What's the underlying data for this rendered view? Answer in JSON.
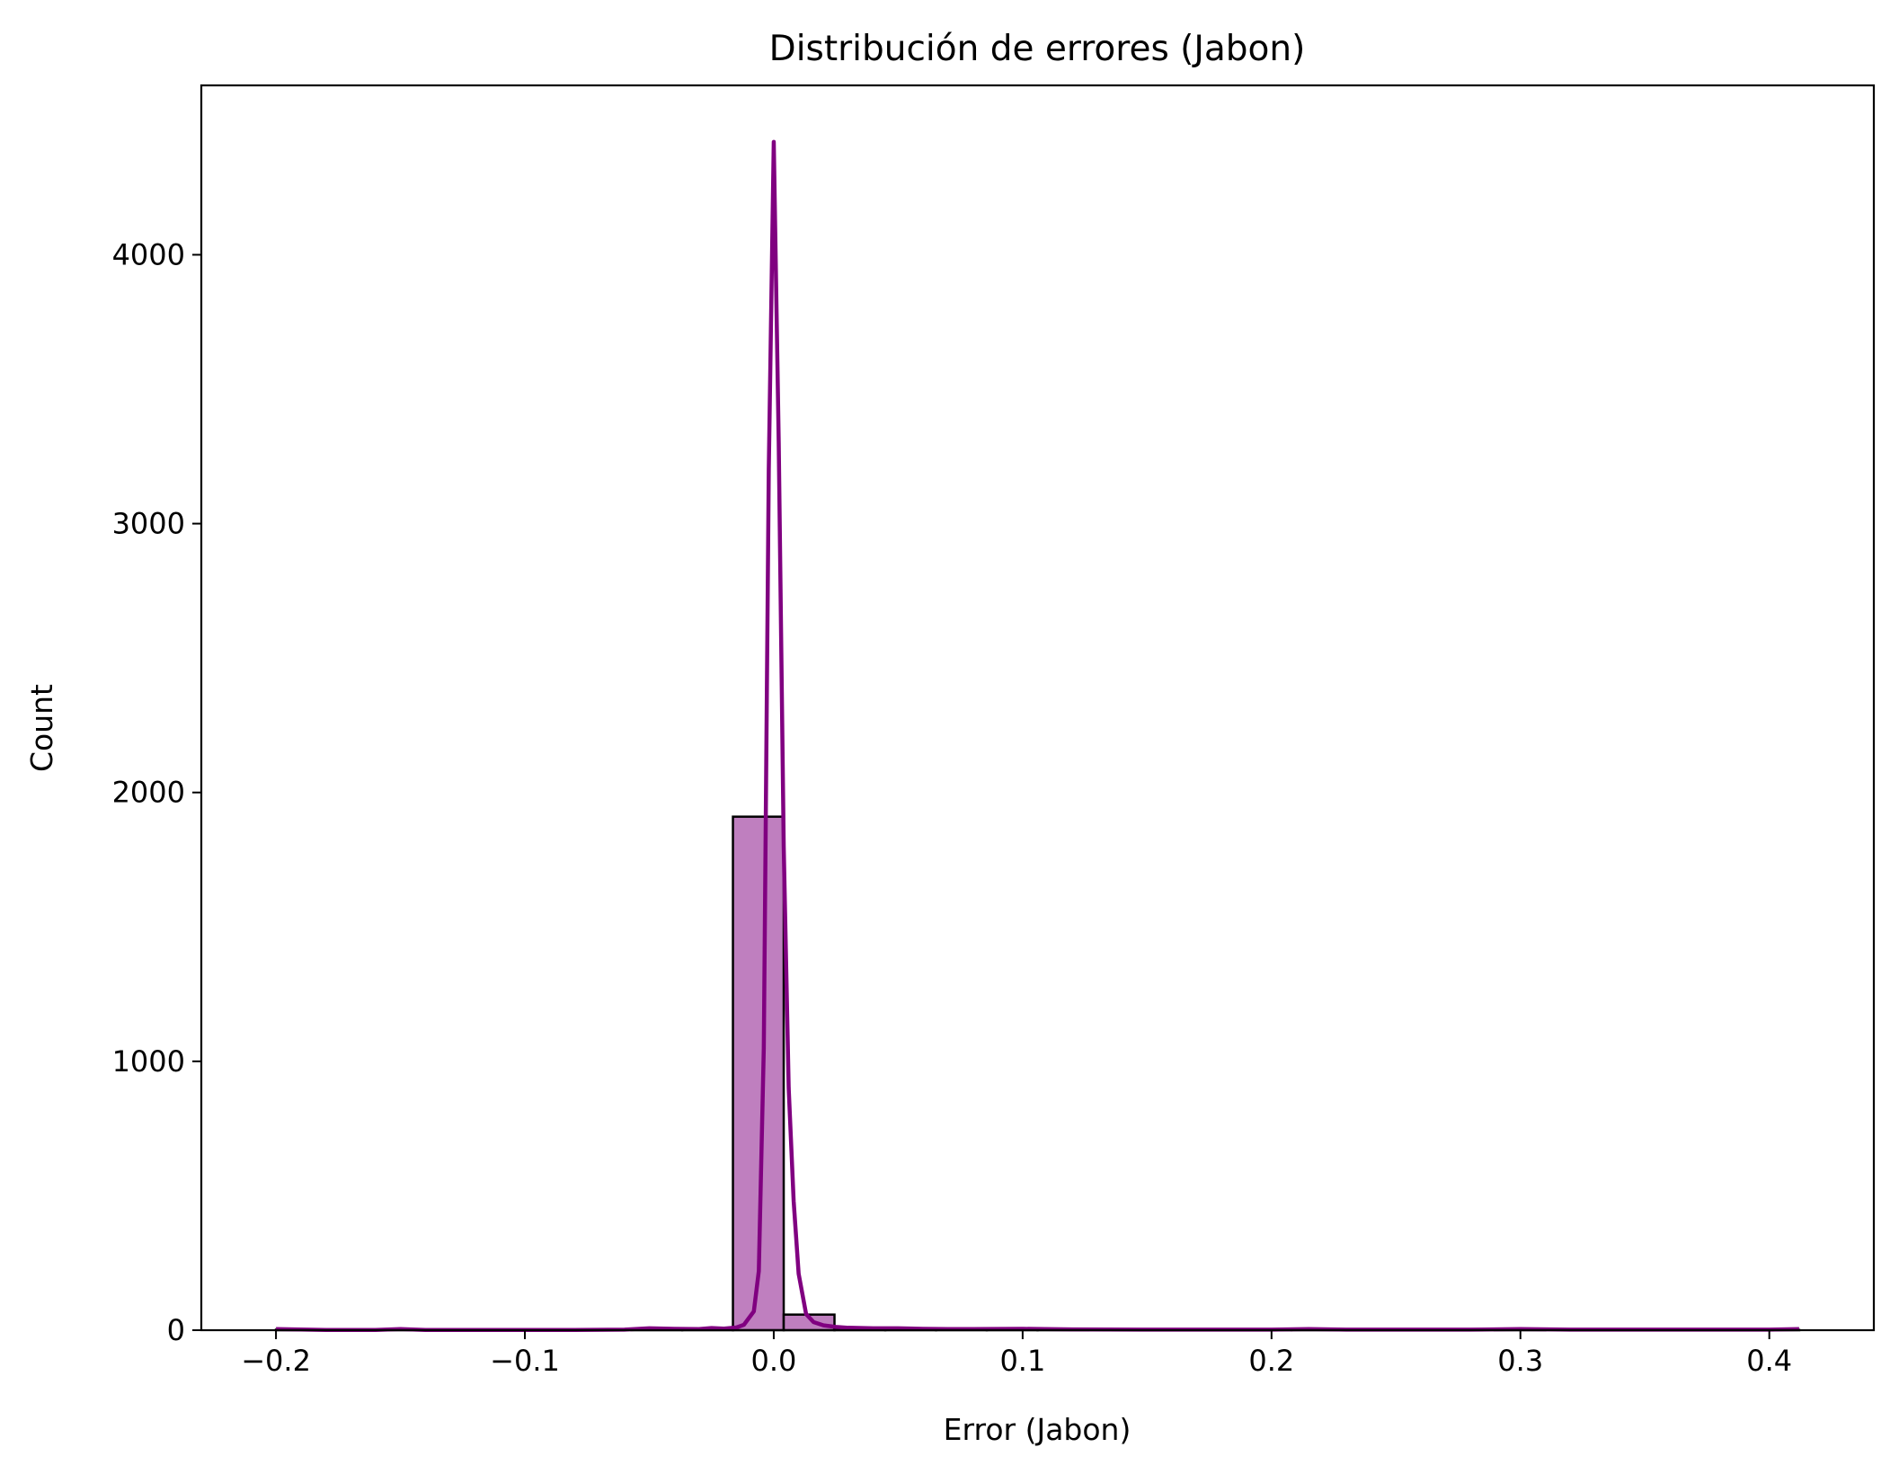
{
  "chart_data": {
    "type": "bar",
    "title": "Distribución de errores (Jabon)",
    "xlabel": "Error (Jabon)",
    "ylabel": "Count",
    "xlim": [
      -0.23,
      0.442
    ],
    "ylim": [
      0,
      4630
    ],
    "x_ticks": [
      -0.2,
      -0.1,
      0.0,
      0.1,
      0.2,
      0.3,
      0.4
    ],
    "x_tick_labels": [
      "−0.2",
      "−0.1",
      "0.0",
      "0.1",
      "0.2",
      "0.3",
      "0.4"
    ],
    "y_ticks": [
      0,
      1000,
      2000,
      3000,
      4000
    ],
    "y_tick_labels": [
      "0",
      "1000",
      "2000",
      "3000",
      "4000"
    ],
    "grid": false,
    "legend": "none",
    "colors": {
      "bar_fill": "#bf7fbf",
      "bar_edge": "#000000",
      "kde_line": "#800080"
    },
    "histogram": {
      "bin_edges": [
        -0.2,
        -0.1796,
        -0.1592,
        -0.1388,
        -0.1184,
        -0.098,
        -0.0776,
        -0.0572,
        -0.0368,
        -0.0164,
        0.004,
        0.0244,
        0.0448,
        0.0652,
        0.0856,
        0.106,
        0.1264,
        0.1468,
        0.1672,
        0.1876,
        0.208,
        0.2284,
        0.2488,
        0.2692,
        0.2896,
        0.31,
        0.3304,
        0.3508,
        0.3712,
        0.3916,
        0.412
      ],
      "counts": [
        2,
        0,
        1,
        0,
        0,
        0,
        0,
        2,
        3,
        1910,
        58,
        4,
        3,
        2,
        2,
        1,
        0,
        0,
        0,
        1,
        1,
        0,
        0,
        0,
        1,
        0,
        0,
        0,
        0,
        1
      ]
    },
    "kde": {
      "x": [
        -0.2,
        -0.18,
        -0.16,
        -0.15,
        -0.14,
        -0.12,
        -0.1,
        -0.08,
        -0.06,
        -0.05,
        -0.04,
        -0.03,
        -0.025,
        -0.02,
        -0.015,
        -0.012,
        -0.008,
        -0.006,
        -0.004,
        -0.002,
        0.0,
        0.002,
        0.004,
        0.006,
        0.008,
        0.01,
        0.013,
        0.016,
        0.02,
        0.025,
        0.03,
        0.04,
        0.05,
        0.06,
        0.07,
        0.08,
        0.1,
        0.12,
        0.15,
        0.2,
        0.215,
        0.23,
        0.28,
        0.3,
        0.32,
        0.36,
        0.4,
        0.412
      ],
      "y": [
        4,
        1,
        1,
        4,
        1,
        1,
        1,
        1,
        2,
        7,
        5,
        4,
        8,
        6,
        10,
        20,
        70,
        220,
        1050,
        3200,
        4420,
        3300,
        1800,
        900,
        480,
        210,
        60,
        30,
        18,
        12,
        9,
        7,
        7,
        5,
        4,
        4,
        5,
        3,
        2,
        2,
        4,
        2,
        2,
        4,
        2,
        2,
        2,
        4
      ]
    }
  }
}
